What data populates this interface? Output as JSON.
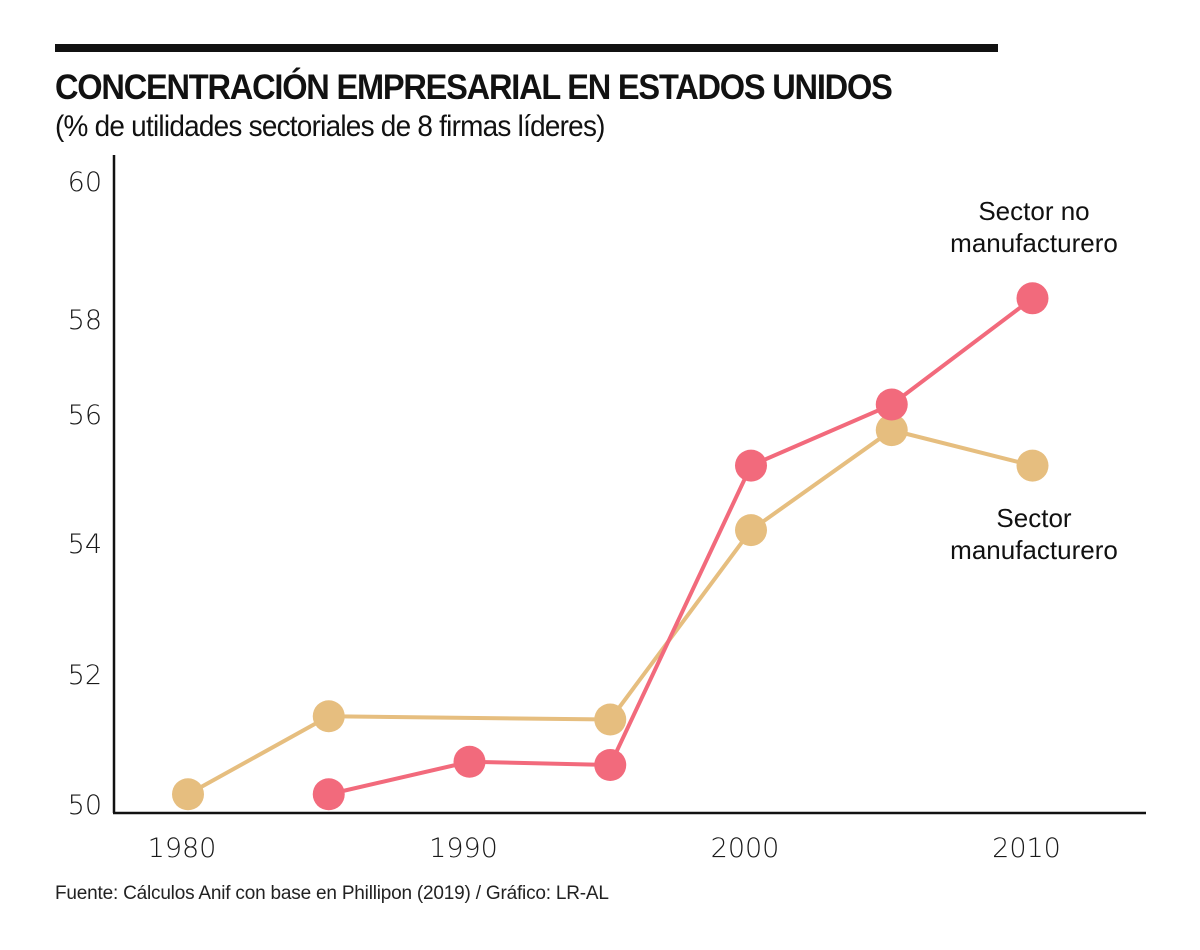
{
  "header": {
    "title": "CONCENTRACIÓN EMPRESARIAL EN ESTADOS UNIDOS",
    "subtitle": "(% de utilidades sectoriales de 8 firmas líderes)"
  },
  "footer": {
    "source": "Fuente: Cálculos Anif con base en Phillipon (2019) / Gráfico: LR-AL"
  },
  "chart_data": {
    "type": "line",
    "title": "CONCENTRACIÓN EMPRESARIAL EN ESTADOS UNIDOS",
    "subtitle": "(% de utilidades sectoriales de 8 firmas líderes)",
    "xlabel": "",
    "ylabel": "",
    "x_ticks": [
      1980,
      1990,
      2000,
      2010
    ],
    "x_tick_labels": [
      "1980",
      "1990",
      "2000",
      "2010"
    ],
    "y_ticks": [
      50,
      52,
      54,
      56,
      58,
      60
    ],
    "y_tick_labels": [
      "50",
      "52",
      "54",
      "56",
      "58",
      "60"
    ],
    "xlim": [
      1975,
      2015
    ],
    "ylim": [
      50,
      60
    ],
    "grid": false,
    "legend": "direct labels at right end of each series",
    "series": [
      {
        "name": "Sector no manufacturero",
        "label_lines": [
          "Sector no",
          "manufacturero"
        ],
        "color": "#F26A7C",
        "x": [
          1985,
          1990,
          1995,
          2000,
          2005,
          2010
        ],
        "values": [
          50.15,
          50.65,
          50.6,
          55.2,
          56.2,
          58.3
        ]
      },
      {
        "name": "Sector manufacturero",
        "label_lines": [
          "Sector",
          "manufacturero"
        ],
        "color": "#E6BE7F",
        "x": [
          1980,
          1985,
          1995,
          2000,
          2005,
          2010
        ],
        "values": [
          50.15,
          51.35,
          51.3,
          54.2,
          55.75,
          55.2
        ]
      }
    ]
  }
}
